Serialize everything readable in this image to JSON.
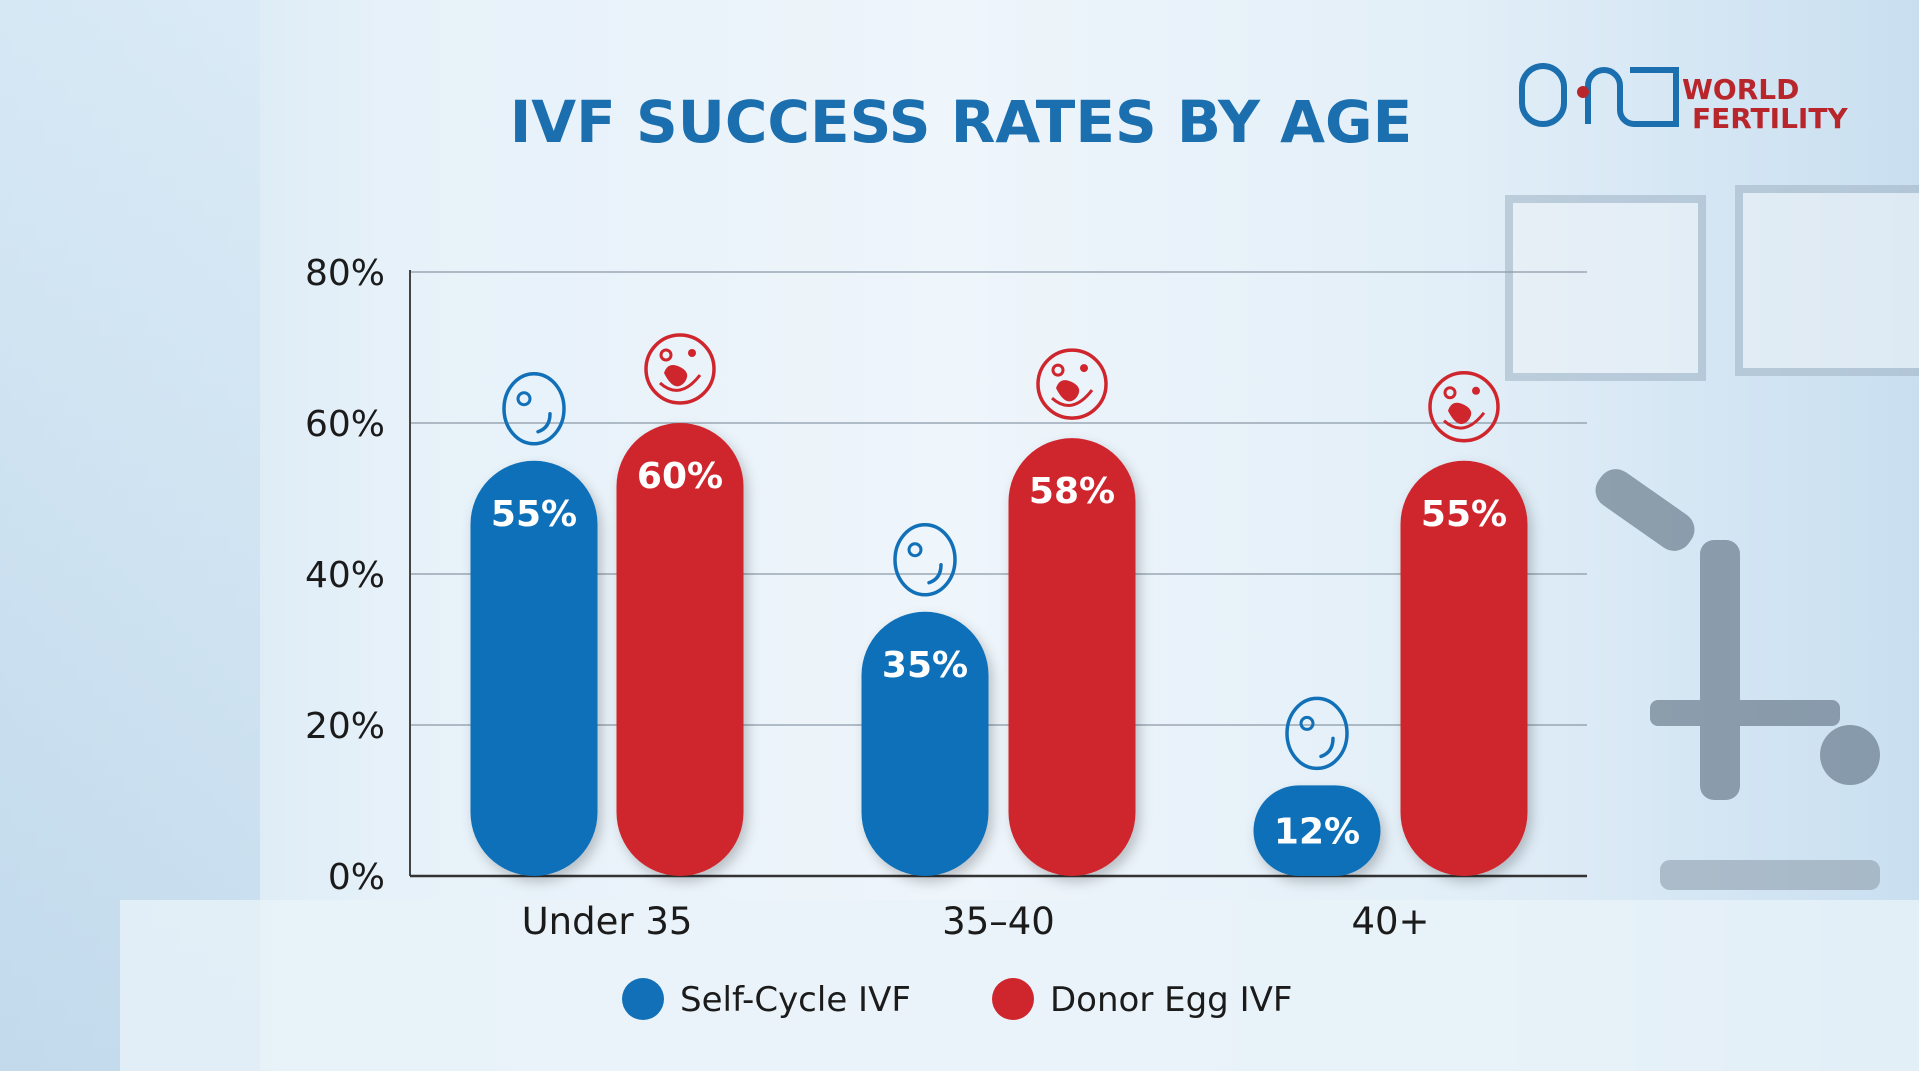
{
  "logo": {
    "text": "ONE WORLD FERTILITY",
    "line1": "WORLD",
    "line2": "FERTILITY"
  },
  "chart_data": {
    "type": "bar",
    "title": "IVF SUCCESS RATES BY AGE",
    "categories": [
      "Under 35",
      "35–40",
      "40+"
    ],
    "series": [
      {
        "name": "Self-Cycle IVF",
        "values": [
          55,
          35,
          12
        ],
        "color": "#1170b8",
        "icon": "egg-icon"
      },
      {
        "name": "Donor Egg IVF",
        "values": [
          60,
          58,
          55
        ],
        "color": "#cf262d",
        "icon": "embryo-icon"
      }
    ],
    "data_labels": [
      [
        "55%",
        "35%",
        "12%"
      ],
      [
        "60%",
        "58%",
        "55%"
      ]
    ],
    "yticks": [
      "0%",
      "20%",
      "40%",
      "60%",
      "80%"
    ],
    "ylim": [
      0,
      80
    ],
    "grid": true,
    "legend": "bottom",
    "xlabel": "",
    "ylabel": ""
  }
}
